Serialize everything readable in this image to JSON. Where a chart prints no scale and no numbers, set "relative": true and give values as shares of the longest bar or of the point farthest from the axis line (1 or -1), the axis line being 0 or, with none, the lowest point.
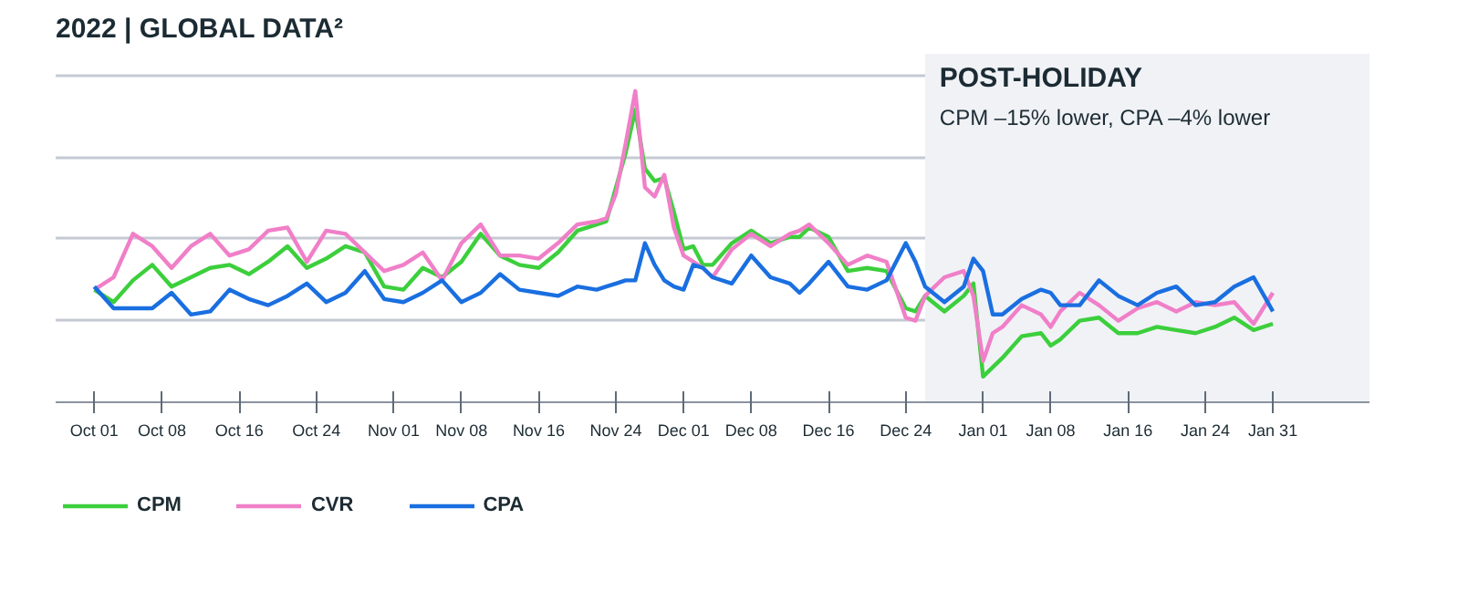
{
  "chart_data": {
    "type": "line",
    "title": "2022 | GLOBAL DATA²",
    "relative": true,
    "x": [
      "2022-10-01",
      "2022-10-03",
      "2022-10-05",
      "2022-10-07",
      "2022-10-09",
      "2022-10-11",
      "2022-10-13",
      "2022-10-15",
      "2022-10-17",
      "2022-10-19",
      "2022-10-21",
      "2022-10-23",
      "2022-10-25",
      "2022-10-27",
      "2022-10-29",
      "2022-10-31",
      "2022-11-02",
      "2022-11-04",
      "2022-11-06",
      "2022-11-08",
      "2022-11-10",
      "2022-11-12",
      "2022-11-14",
      "2022-11-16",
      "2022-11-18",
      "2022-11-20",
      "2022-11-22",
      "2022-11-23",
      "2022-11-24",
      "2022-11-25",
      "2022-11-26",
      "2022-11-27",
      "2022-11-28",
      "2022-11-29",
      "2022-11-30",
      "2022-12-01",
      "2022-12-02",
      "2022-12-03",
      "2022-12-04",
      "2022-12-06",
      "2022-12-08",
      "2022-12-10",
      "2022-12-12",
      "2022-12-13",
      "2022-12-14",
      "2022-12-16",
      "2022-12-18",
      "2022-12-20",
      "2022-12-22",
      "2022-12-24",
      "2022-12-25",
      "2022-12-26",
      "2022-12-28",
      "2022-12-30",
      "2022-12-31",
      "2023-01-01",
      "2023-01-02",
      "2023-01-03",
      "2023-01-05",
      "2023-01-07",
      "2023-01-08",
      "2023-01-09",
      "2023-01-11",
      "2023-01-13",
      "2023-01-15",
      "2023-01-17",
      "2023-01-19",
      "2023-01-21",
      "2023-01-23",
      "2023-01-25",
      "2023-01-27",
      "2023-01-29",
      "2023-01-31"
    ],
    "series": [
      {
        "name": "CPM",
        "color": "#3ccf3c",
        "values": [
          0.36,
          0.32,
          0.39,
          0.44,
          0.37,
          0.4,
          0.43,
          0.44,
          0.41,
          0.45,
          0.5,
          0.43,
          0.46,
          0.5,
          0.48,
          0.37,
          0.36,
          0.43,
          0.4,
          0.45,
          0.54,
          0.47,
          0.44,
          0.43,
          0.48,
          0.55,
          0.57,
          0.58,
          0.69,
          0.8,
          0.94,
          0.75,
          0.71,
          0.72,
          0.61,
          0.49,
          0.5,
          0.44,
          0.44,
          0.51,
          0.55,
          0.51,
          0.53,
          0.53,
          0.56,
          0.53,
          0.42,
          0.43,
          0.42,
          0.3,
          0.29,
          0.34,
          0.29,
          0.34,
          0.38,
          0.08,
          0.11,
          0.14,
          0.21,
          0.22,
          0.18,
          0.2,
          0.26,
          0.27,
          0.22,
          0.22,
          0.24,
          0.23,
          0.22,
          0.24,
          0.27,
          0.23,
          0.25
        ]
      },
      {
        "name": "CVR",
        "color": "#f07fc8",
        "values": [
          0.36,
          0.4,
          0.54,
          0.5,
          0.43,
          0.5,
          0.54,
          0.47,
          0.49,
          0.55,
          0.56,
          0.45,
          0.55,
          0.54,
          0.48,
          0.42,
          0.44,
          0.48,
          0.39,
          0.51,
          0.57,
          0.47,
          0.47,
          0.46,
          0.51,
          0.57,
          0.58,
          0.59,
          0.67,
          0.83,
          1.0,
          0.69,
          0.66,
          0.73,
          0.56,
          0.47,
          0.45,
          0.43,
          0.4,
          0.49,
          0.54,
          0.5,
          0.54,
          0.55,
          0.57,
          0.51,
          0.44,
          0.47,
          0.45,
          0.27,
          0.26,
          0.34,
          0.4,
          0.42,
          0.34,
          0.13,
          0.22,
          0.24,
          0.31,
          0.28,
          0.24,
          0.29,
          0.35,
          0.31,
          0.26,
          0.3,
          0.32,
          0.29,
          0.32,
          0.31,
          0.32,
          0.25,
          0.35
        ]
      },
      {
        "name": "CPA",
        "color": "#1a6fe0",
        "values": [
          0.37,
          0.3,
          0.3,
          0.3,
          0.35,
          0.28,
          0.29,
          0.36,
          0.33,
          0.31,
          0.34,
          0.38,
          0.32,
          0.35,
          0.42,
          0.33,
          0.32,
          0.35,
          0.39,
          0.32,
          0.35,
          0.41,
          0.36,
          0.35,
          0.34,
          0.37,
          0.36,
          0.37,
          0.38,
          0.39,
          0.39,
          0.51,
          0.44,
          0.39,
          0.37,
          0.36,
          0.44,
          0.43,
          0.4,
          0.38,
          0.47,
          0.4,
          0.38,
          0.35,
          0.38,
          0.45,
          0.37,
          0.36,
          0.39,
          0.51,
          0.45,
          0.37,
          0.32,
          0.37,
          0.46,
          0.42,
          0.28,
          0.28,
          0.33,
          0.36,
          0.35,
          0.31,
          0.31,
          0.39,
          0.34,
          0.31,
          0.35,
          0.37,
          0.31,
          0.32,
          0.37,
          0.4,
          0.29
        ]
      }
    ],
    "xlim": [
      "2022-09-27",
      "2023-02-10"
    ],
    "xticks": [
      {
        "value": "2022-10-01",
        "label": "Oct 01"
      },
      {
        "value": "2022-10-08",
        "label": "Oct 08"
      },
      {
        "value": "2022-10-16",
        "label": "Oct 16"
      },
      {
        "value": "2022-10-24",
        "label": "Oct 24"
      },
      {
        "value": "2022-11-01",
        "label": "Nov 01"
      },
      {
        "value": "2022-11-08",
        "label": "Nov 08"
      },
      {
        "value": "2022-11-16",
        "label": "Nov 16"
      },
      {
        "value": "2022-11-24",
        "label": "Nov 24"
      },
      {
        "value": "2022-12-01",
        "label": "Dec 01"
      },
      {
        "value": "2022-12-08",
        "label": "Dec 08"
      },
      {
        "value": "2022-12-16",
        "label": "Dec 16"
      },
      {
        "value": "2022-12-24",
        "label": "Dec 24"
      },
      {
        "value": "2023-01-01",
        "label": "Jan 01"
      },
      {
        "value": "2023-01-08",
        "label": "Jan 08"
      },
      {
        "value": "2023-01-16",
        "label": "Jan 16"
      },
      {
        "value": "2023-01-24",
        "label": "Jan 24"
      },
      {
        "value": "2023-01-31",
        "label": "Jan 31"
      }
    ],
    "bands": [
      {
        "axis": "x",
        "from": "2022-12-26",
        "to": "2023-02-10",
        "label": "POST-HOLIDAY",
        "color": "#f0f2f6"
      }
    ],
    "annotations": [
      "CPM –15% lower, CPA –4% lower"
    ],
    "grid": "y",
    "legend": "bottom left",
    "line_style": "solid",
    "marker": "none"
  }
}
